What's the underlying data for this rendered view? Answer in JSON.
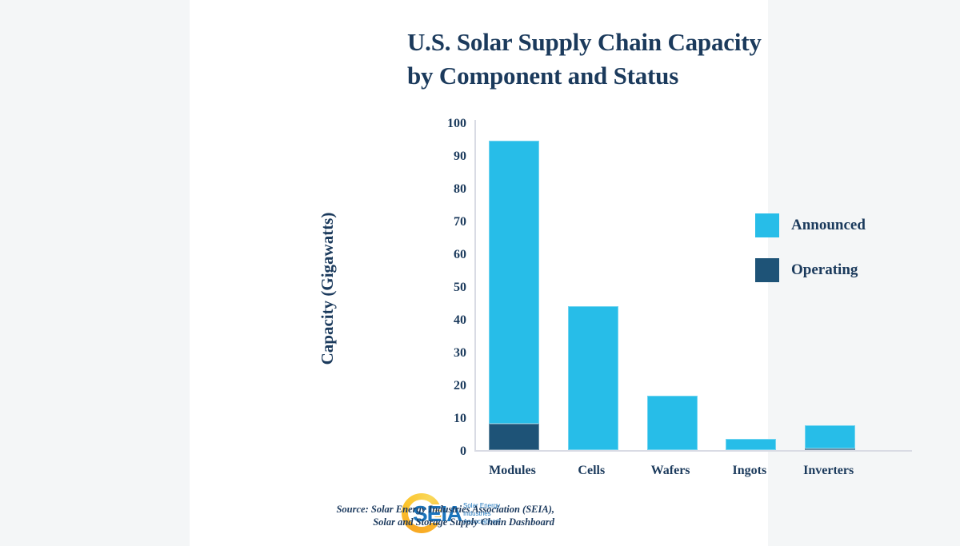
{
  "title": {
    "line1": "U.S. Solar Supply Chain Capacity",
    "line2": "by Component and Status"
  },
  "chart_data": {
    "type": "bar",
    "stacked": true,
    "title": "U.S. Solar Supply Chain Capacity by Component and Status",
    "categories": [
      "Modules",
      "Cells",
      "Wafers",
      "Ingots",
      "Inverters"
    ],
    "series": [
      {
        "name": "Operating",
        "color": "#1E5377",
        "values": [
          8,
          0,
          0,
          0,
          0.5
        ]
      },
      {
        "name": "Announced",
        "color": "#27BDE8",
        "values": [
          86.5,
          44,
          16.5,
          3.5,
          7
        ]
      }
    ],
    "totals_gw": [
      94.5,
      44,
      16.5,
      3.5,
      7.5
    ],
    "xlabel": "",
    "ylabel": "Capacity (Gigawatts)",
    "ylim": [
      0,
      100
    ],
    "yticks": [
      0,
      10,
      20,
      30,
      40,
      50,
      60,
      70,
      80,
      90,
      100
    ],
    "grid": false,
    "legend_position": "center-right"
  },
  "legend": {
    "items": [
      {
        "label": "Announced",
        "color": "#27BDE8"
      },
      {
        "label": "Operating",
        "color": "#1E5377"
      }
    ]
  },
  "footer": {
    "logo": {
      "acronym": "SEIA",
      "org_line1": "Solar Energy",
      "org_line2": "Industries",
      "org_line3": "Association®"
    },
    "source_line1": "Source: Solar Energy Industries Association (SEIA),",
    "source_line2": "Solar and Storage Supply Chain Dashboard"
  },
  "colors": {
    "page_background": "#F4F6F7",
    "card_background": "#FFFFFF",
    "text_navy": "#1B3A5C",
    "announced_blue": "#27BDE8",
    "operating_navy": "#1E5377",
    "axis_line": "#D9DBE4",
    "logo_blue": "#1C75BC",
    "logo_gold": "#F9B233"
  }
}
